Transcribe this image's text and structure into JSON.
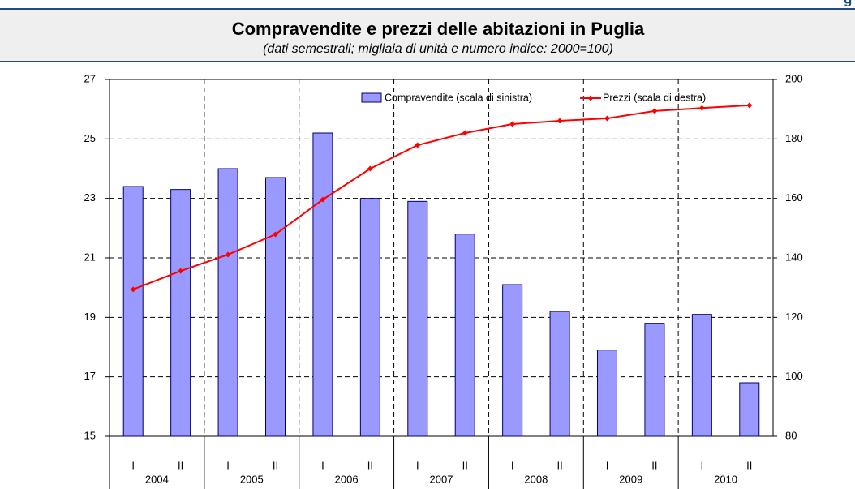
{
  "header_fragment": "g",
  "chart_data": {
    "type": "bar_line",
    "title": "Compravendite e prezzi delle abitazioni in Puglia",
    "subtitle": "(dati semestrali; migliaia di unità e numero indice: 2000=100)",
    "categories": [
      "I",
      "II",
      "I",
      "II",
      "I",
      "II",
      "I",
      "II",
      "I",
      "II",
      "I",
      "II",
      "I",
      "II"
    ],
    "groups": [
      "2004",
      "2005",
      "2006",
      "2007",
      "2008",
      "2009",
      "2010"
    ],
    "series": [
      {
        "name": "Compravendite (scala di sinistra)",
        "type": "bar",
        "color": "#9999ff",
        "values": [
          23.4,
          23.3,
          24.0,
          23.7,
          25.2,
          23.0,
          22.9,
          21.8,
          20.1,
          19.2,
          17.9,
          18.8,
          19.1,
          16.8
        ]
      },
      {
        "name": "Prezzi (scala di destra)",
        "type": "line",
        "axis": "y2",
        "color": "#ff0000",
        "values": [
          129.4,
          135.6,
          141.1,
          147.9,
          159.6,
          170.0,
          177.9,
          182.0,
          185.0,
          186.1,
          186.9,
          189.4,
          190.4,
          191.3
        ]
      }
    ],
    "ylim": [
      15,
      27
    ],
    "yticks": [
      15,
      17,
      19,
      21,
      23,
      25,
      27
    ],
    "y2lim": [
      80,
      200
    ],
    "y2ticks": [
      80,
      100,
      120,
      140,
      160,
      180,
      200
    ],
    "grid": true,
    "legend": "top"
  }
}
